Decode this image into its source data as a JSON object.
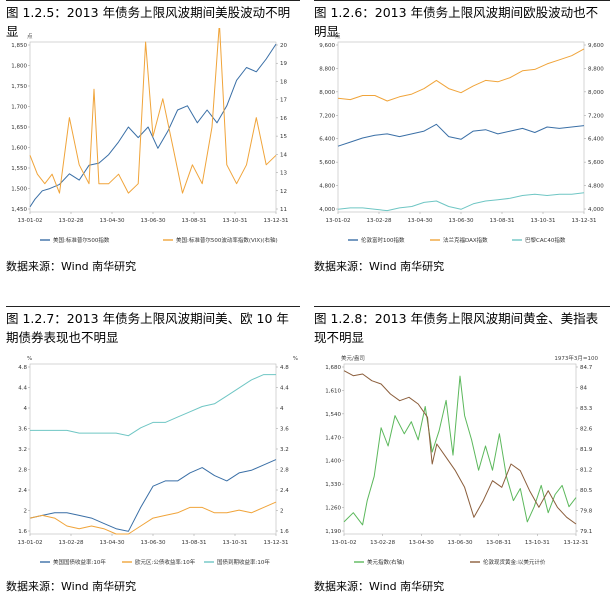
{
  "source_label": "数据来源：Wind 南华研究",
  "chart_data": [
    {
      "title": "图 1.2.5：2013 年债务上限风波期间美股波动不明显",
      "type": "line",
      "x_ticks": [
        "13-01-02",
        "13-02-28",
        "13-04-30",
        "13-06-30",
        "13-08-31",
        "13-10-31",
        "13-12-31"
      ],
      "left_unit": "点",
      "left_ticks": [
        "1,850",
        "1,800",
        "1,750",
        "1,700",
        "1,650",
        "1,600",
        "1,550",
        "1,500",
        "1,450"
      ],
      "left_range": [
        1450,
        1850
      ],
      "right_ticks": [
        "20",
        "19",
        "18",
        "17",
        "16",
        "15",
        "14",
        "13",
        "12",
        "11"
      ],
      "right_range": [
        11,
        20
      ],
      "series": [
        {
          "name": "美国:标准普尔500指数",
          "axis": "left",
          "color": "#3a6fa6",
          "x": [
            0,
            0.02,
            0.05,
            0.08,
            0.12,
            0.16,
            0.2,
            0.24,
            0.28,
            0.32,
            0.36,
            0.4,
            0.44,
            0.48,
            0.52,
            0.56,
            0.6,
            0.64,
            0.68,
            0.72,
            0.76,
            0.8,
            0.84,
            0.88,
            0.92,
            0.96,
            1
          ],
          "y": [
            1462,
            1480,
            1500,
            1505,
            1515,
            1540,
            1525,
            1560,
            1565,
            1585,
            1615,
            1650,
            1625,
            1650,
            1600,
            1640,
            1690,
            1700,
            1660,
            1690,
            1660,
            1700,
            1760,
            1790,
            1780,
            1810,
            1845
          ]
        },
        {
          "name": "美国:标准普尔500波动率指数(VIX)(右轴)",
          "axis": "right",
          "color": "#f0a43a",
          "x": [
            0,
            0.03,
            0.06,
            0.09,
            0.12,
            0.16,
            0.2,
            0.24,
            0.26,
            0.28,
            0.32,
            0.36,
            0.4,
            0.44,
            0.47,
            0.5,
            0.54,
            0.58,
            0.62,
            0.66,
            0.7,
            0.74,
            0.77,
            0.8,
            0.84,
            0.88,
            0.92,
            0.96,
            1
          ],
          "y": [
            14,
            13,
            12.5,
            13,
            12,
            16,
            13.5,
            12.5,
            17.5,
            12.5,
            12.5,
            13,
            12,
            12.5,
            20,
            15,
            17,
            14.5,
            12,
            13.5,
            12.5,
            15.5,
            21,
            13.5,
            12.5,
            13.5,
            16,
            13.5,
            14
          ]
        }
      ]
    },
    {
      "title": "图 1.2.6：2013 年债务上限风波期间欧股波动也不明显",
      "type": "line",
      "x_ticks": [
        "13-01-02",
        "13-02-28",
        "13-04-30",
        "13-06-30",
        "13-08-31",
        "13-10-31",
        "13-12-31"
      ],
      "left_unit": "点",
      "left_ticks": [
        "9,600",
        "8,800",
        "8,000",
        "7,200",
        "6,400",
        "5,600",
        "4,800",
        "4,000"
      ],
      "left_range": [
        3600,
        9800
      ],
      "right_ticks": [
        "9,600",
        "8,800",
        "8,000",
        "7,200",
        "6,400",
        "5,600",
        "4,800",
        "4,000"
      ],
      "right_range": [
        3600,
        9800
      ],
      "series": [
        {
          "name": "伦敦富时100指数",
          "axis": "left",
          "color": "#3a6fa6",
          "x": [
            0,
            0.05,
            0.1,
            0.15,
            0.2,
            0.25,
            0.3,
            0.35,
            0.4,
            0.45,
            0.5,
            0.55,
            0.6,
            0.65,
            0.7,
            0.75,
            0.8,
            0.85,
            0.9,
            0.95,
            1
          ],
          "y": [
            6000,
            6150,
            6300,
            6400,
            6450,
            6350,
            6450,
            6550,
            6800,
            6350,
            6250,
            6550,
            6600,
            6450,
            6550,
            6650,
            6500,
            6700,
            6650,
            6700,
            6750
          ]
        },
        {
          "name": "法兰克福DAX指数",
          "axis": "left",
          "color": "#f0a43a",
          "x": [
            0,
            0.05,
            0.1,
            0.15,
            0.2,
            0.25,
            0.3,
            0.35,
            0.4,
            0.45,
            0.5,
            0.55,
            0.6,
            0.65,
            0.7,
            0.75,
            0.8,
            0.85,
            0.9,
            0.95,
            1
          ],
          "y": [
            7750,
            7700,
            7850,
            7850,
            7650,
            7800,
            7900,
            8100,
            8400,
            8100,
            7950,
            8200,
            8400,
            8350,
            8500,
            8750,
            8800,
            9000,
            9150,
            9300,
            9550
          ]
        },
        {
          "name": "巴黎CAC40指数",
          "axis": "right",
          "color": "#6fc6c4",
          "x": [
            0,
            0.05,
            0.1,
            0.15,
            0.2,
            0.25,
            0.3,
            0.35,
            0.4,
            0.45,
            0.5,
            0.55,
            0.6,
            0.65,
            0.7,
            0.75,
            0.8,
            0.85,
            0.9,
            0.95,
            1
          ],
          "y": [
            3700,
            3750,
            3750,
            3700,
            3650,
            3750,
            3800,
            3950,
            4000,
            3800,
            3700,
            3900,
            4000,
            4050,
            4100,
            4200,
            4250,
            4200,
            4250,
            4250,
            4300
          ]
        }
      ]
    },
    {
      "title": "图 1.2.7：2013 年债务上限风波期间美、欧 10 年期债券表现也不明显",
      "type": "line",
      "x_ticks": [
        "13-01-02",
        "13-02-28",
        "13-04-30",
        "13-06-30",
        "13-08-31",
        "13-10-31",
        "13-12-31"
      ],
      "left_unit": "%",
      "left_ticks": [
        "4.8",
        "4.4",
        "4",
        "3.6",
        "3.2",
        "2.8",
        "2.4",
        "2",
        "1.6"
      ],
      "left_range": [
        1.6,
        4.8
      ],
      "right_unit": "%",
      "right_ticks": [
        "4.8",
        "4.4",
        "4",
        "3.6",
        "3.2",
        "2.8",
        "2.4",
        "2",
        "1.6"
      ],
      "right_range": [
        1.6,
        4.8
      ],
      "series": [
        {
          "name": "美国国债收益率:10年",
          "axis": "left",
          "color": "#3a6fa6",
          "x": [
            0,
            0.05,
            0.1,
            0.15,
            0.2,
            0.25,
            0.3,
            0.35,
            0.4,
            0.45,
            0.5,
            0.55,
            0.6,
            0.65,
            0.7,
            0.75,
            0.8,
            0.85,
            0.9,
            0.95,
            1
          ],
          "y": [
            1.9,
            1.95,
            2.0,
            2.0,
            1.95,
            1.9,
            1.8,
            1.7,
            1.65,
            2.1,
            2.5,
            2.6,
            2.6,
            2.75,
            2.85,
            2.7,
            2.6,
            2.75,
            2.8,
            2.9,
            3.0
          ]
        },
        {
          "name": "欧元区:公债收益率:10年",
          "axis": "left",
          "color": "#f0a43a",
          "x": [
            0,
            0.05,
            0.1,
            0.15,
            0.2,
            0.25,
            0.3,
            0.35,
            0.4,
            0.45,
            0.5,
            0.55,
            0.6,
            0.65,
            0.7,
            0.75,
            0.8,
            0.85,
            0.9,
            0.95,
            1
          ],
          "y": [
            1.9,
            1.95,
            1.9,
            1.75,
            1.7,
            1.75,
            1.7,
            1.6,
            1.6,
            1.75,
            1.9,
            1.95,
            2.0,
            2.1,
            2.1,
            2.0,
            2.0,
            2.05,
            2.0,
            2.1,
            2.2
          ]
        },
        {
          "name": "国债到期收益率:10年",
          "axis": "right",
          "color": "#6fc6c4",
          "x": [
            0,
            0.05,
            0.1,
            0.15,
            0.2,
            0.25,
            0.3,
            0.35,
            0.4,
            0.45,
            0.5,
            0.55,
            0.6,
            0.65,
            0.7,
            0.75,
            0.8,
            0.85,
            0.9,
            0.95,
            1
          ],
          "y": [
            3.55,
            3.55,
            3.55,
            3.55,
            3.5,
            3.5,
            3.5,
            3.5,
            3.45,
            3.6,
            3.7,
            3.7,
            3.8,
            3.9,
            4.0,
            4.05,
            4.2,
            4.35,
            4.5,
            4.6,
            4.6
          ]
        }
      ]
    },
    {
      "title": "图 1.2.8：2013 年债务上限风波期间黄金、美指表现不明显",
      "type": "line",
      "x_ticks": [
        "13-01-02",
        "13-02-28",
        "13-04-30",
        "13-06-30",
        "13-08-31",
        "13-10-31",
        "13-12-31"
      ],
      "left_unit": "美元/盎司",
      "left_ticks": [
        "1,680",
        "1,610",
        "1,540",
        "1,470",
        "1,400",
        "1,330",
        "1,260",
        "1,190"
      ],
      "left_range": [
        1190,
        1700
      ],
      "right_unit": "1973年3月=100",
      "right_ticks": [
        "84.7",
        "84",
        "83.3",
        "82.6",
        "81.9",
        "81.2",
        "80.5",
        "79.8",
        "79.1"
      ],
      "right_range": [
        79.1,
        84.7
      ],
      "series": [
        {
          "name": "美元指数(右轴)",
          "axis": "right",
          "color": "#5cb85c",
          "x": [
            0,
            0.04,
            0.08,
            0.1,
            0.13,
            0.16,
            0.19,
            0.22,
            0.26,
            0.29,
            0.32,
            0.35,
            0.38,
            0.41,
            0.44,
            0.47,
            0.5,
            0.52,
            0.55,
            0.58,
            0.61,
            0.64,
            0.67,
            0.7,
            0.73,
            0.76,
            0.79,
            0.82,
            0.85,
            0.88,
            0.91,
            0.94,
            0.97,
            1
          ],
          "y": [
            79.5,
            79.8,
            79.4,
            80.2,
            81.0,
            82.6,
            82.0,
            83.0,
            82.4,
            82.8,
            82.2,
            83.3,
            81.8,
            82.5,
            83.5,
            81.7,
            84.3,
            83.0,
            82.2,
            81.2,
            82.0,
            81.2,
            82.4,
            81.0,
            80.2,
            80.6,
            79.5,
            80.0,
            80.7,
            79.8,
            80.4,
            80.7,
            80.0,
            80.3
          ]
        },
        {
          "name": "伦敦现货黄金:以美元计价",
          "axis": "left",
          "color": "#8b5e3c",
          "x": [
            0,
            0.04,
            0.08,
            0.12,
            0.16,
            0.2,
            0.24,
            0.28,
            0.32,
            0.36,
            0.38,
            0.4,
            0.44,
            0.48,
            0.52,
            0.56,
            0.6,
            0.64,
            0.68,
            0.72,
            0.76,
            0.8,
            0.84,
            0.88,
            0.92,
            0.96,
            1
          ],
          "y": [
            1680,
            1665,
            1670,
            1650,
            1640,
            1610,
            1590,
            1600,
            1580,
            1540,
            1400,
            1460,
            1420,
            1380,
            1330,
            1240,
            1290,
            1350,
            1330,
            1400,
            1380,
            1320,
            1270,
            1320,
            1270,
            1240,
            1220
          ]
        }
      ]
    }
  ]
}
